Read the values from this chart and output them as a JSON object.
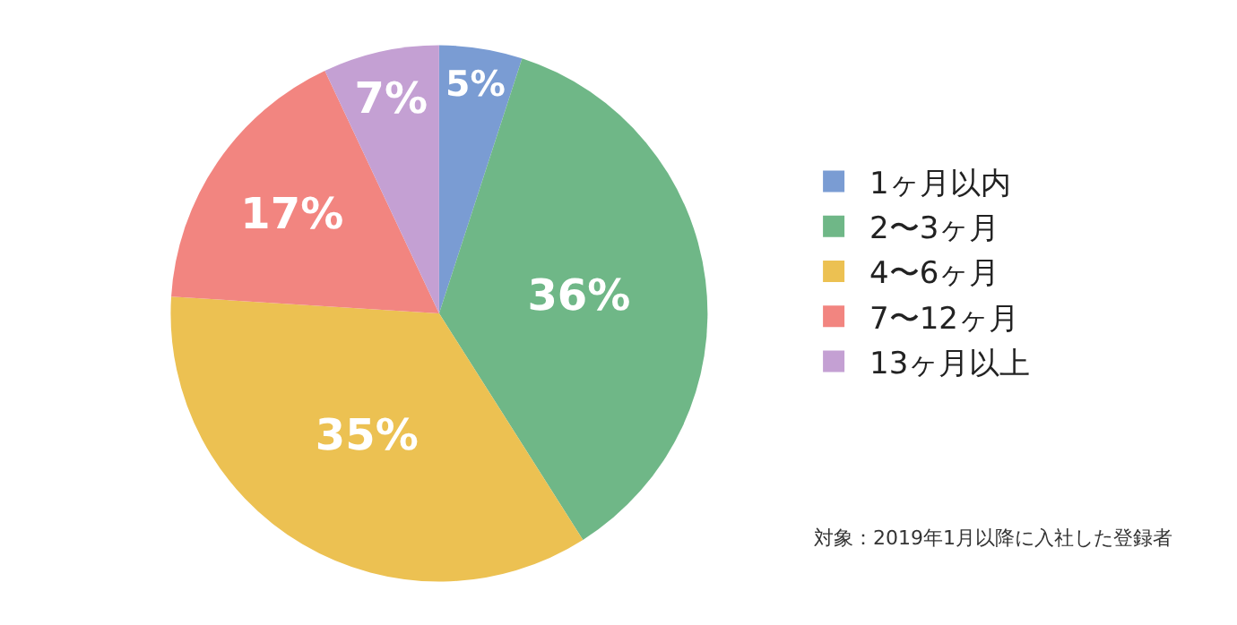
{
  "chart_data": {
    "type": "pie",
    "categories": [
      "1ヶ月以内",
      "2〜3ヶ月",
      "4〜6ヶ月",
      "7〜12ヶ月",
      "13ヶ月以上"
    ],
    "values": [
      5,
      36,
      35,
      17,
      7
    ],
    "value_labels": [
      "5%",
      "36%",
      "35%",
      "17%",
      "7%"
    ],
    "colors": [
      "#7a9cd3",
      "#6fb787",
      "#ecc152",
      "#f28580",
      "#c4a0d3"
    ],
    "legend": "right",
    "annotations": [
      "対象：2019年1月以降に入社した登録者"
    ]
  }
}
